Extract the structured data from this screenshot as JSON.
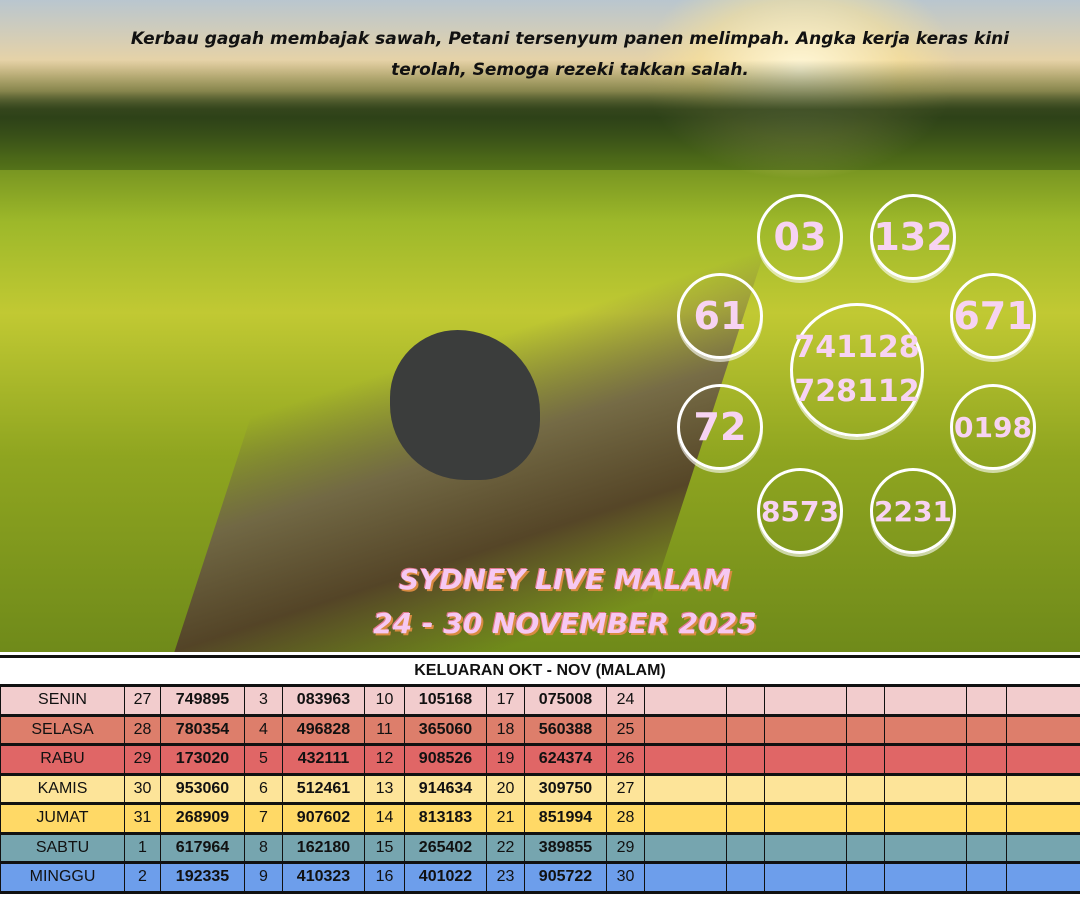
{
  "caption": "Kerbau gagah membajak sawah, Petani tersenyum panen melimpah. Angka kerja keras kini terolah, Semoga rezeki takkan salah.",
  "title_line1": "SYDNEY LIVE MALAM",
  "title_line2": "24 - 30 NOVEMBER 2025",
  "numbers": {
    "n03": "03",
    "n132": "132",
    "n61": "61",
    "n671": "671",
    "center1": "741128",
    "center2": "728112",
    "n72": "72",
    "n0198": "0198",
    "n8573": "8573",
    "n2231": "2231"
  },
  "table": {
    "header": "KELUARAN OKT - NOV (MALAM)",
    "rows": [
      {
        "day": "SENIN",
        "color": "#f2cccd",
        "cells": [
          "27",
          "749895",
          "3",
          "083963",
          "10",
          "105168",
          "17",
          "075008",
          "24"
        ]
      },
      {
        "day": "SELASA",
        "color": "#dd7e6b",
        "cells": [
          "28",
          "780354",
          "4",
          "496828",
          "11",
          "365060",
          "18",
          "560388",
          "25"
        ]
      },
      {
        "day": "RABU",
        "color": "#e06666",
        "cells": [
          "29",
          "173020",
          "5",
          "432111",
          "12",
          "908526",
          "19",
          "624374",
          "26"
        ]
      },
      {
        "day": "KAMIS",
        "color": "#fde499",
        "cells": [
          "30",
          "953060",
          "6",
          "512461",
          "13",
          "914634",
          "20",
          "309750",
          "27"
        ]
      },
      {
        "day": "JUMAT",
        "color": "#ffd966",
        "cells": [
          "31",
          "268909",
          "7",
          "907602",
          "14",
          "813183",
          "21",
          "851994",
          "28"
        ]
      },
      {
        "day": "SABTU",
        "color": "#76a5af",
        "cells": [
          "1",
          "617964",
          "8",
          "162180",
          "15",
          "265402",
          "22",
          "389855",
          "29"
        ]
      },
      {
        "day": "MINGGU",
        "color": "#6d9eeb",
        "cells": [
          "2",
          "192335",
          "9",
          "410323",
          "16",
          "401022",
          "23",
          "905722",
          "30"
        ]
      }
    ]
  }
}
